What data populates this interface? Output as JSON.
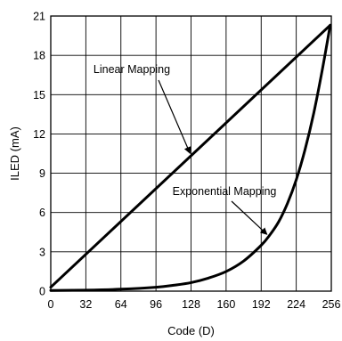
{
  "chart_data": {
    "type": "line",
    "xlabel": "Code (D)",
    "ylabel": "ILED (mA)",
    "xlim": [
      0,
      256
    ],
    "ylim": [
      0,
      21
    ],
    "grid": true,
    "xticks": [
      0,
      32,
      64,
      96,
      128,
      160,
      192,
      224,
      256
    ],
    "yticks": [
      0,
      3,
      6,
      9,
      12,
      15,
      18,
      21
    ],
    "xtick_labels": [
      "0",
      "32",
      "64",
      "96",
      "128",
      "160",
      "192",
      "224",
      "256"
    ],
    "ytick_labels": [
      "0",
      "3",
      "6",
      "9",
      "12",
      "15",
      "18",
      "21"
    ],
    "series": [
      {
        "name": "Linear Mapping",
        "x": [
          0,
          255
        ],
        "y": [
          0.3,
          20.3
        ]
      },
      {
        "name": "Exponential Mapping",
        "x": [
          0,
          32,
          64,
          96,
          112,
          128,
          144,
          160,
          176,
          192,
          200,
          208,
          216,
          224,
          232,
          240,
          248,
          255
        ],
        "y": [
          0.05,
          0.08,
          0.15,
          0.3,
          0.45,
          0.65,
          1.0,
          1.5,
          2.3,
          3.5,
          4.3,
          5.3,
          6.7,
          8.5,
          10.8,
          13.6,
          17.0,
          20.3
        ]
      }
    ],
    "annotations": [
      {
        "text": "Linear Mapping",
        "target_series": 0,
        "target_x": 128
      },
      {
        "text": "Exponential Mapping",
        "target_series": 1,
        "target_x": 199
      }
    ]
  }
}
